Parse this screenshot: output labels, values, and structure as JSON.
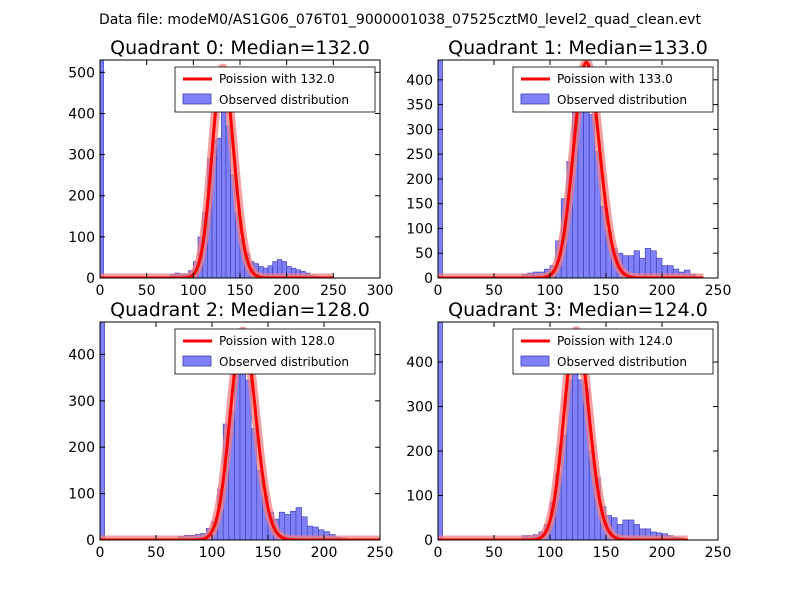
{
  "suptitle": "Data file: modeM0/AS1G06_076T01_9000001038_07525cztM0_level2_quad_clean.evt",
  "colors": {
    "bar_fill": "#8080f8",
    "bar_edge": "#3b3bb0",
    "poisson": "#ff0000",
    "poisson_halo": "#f08080"
  },
  "legend_labels": {
    "observed": "Observed distribution"
  },
  "chart_data": [
    {
      "type": "bar",
      "title": "Quadrant 0: Median=132.0",
      "poisson_label": "Poission with 132.0",
      "median": 132.0,
      "xlim": [
        0,
        300
      ],
      "ylim": [
        0,
        530
      ],
      "xticks": [
        "0",
        "50",
        "100",
        "150",
        "200",
        "250",
        "300"
      ],
      "yticks": [
        "0",
        "100",
        "200",
        "300",
        "400",
        "500"
      ],
      "bin_width": 5,
      "zero_bin_count": 530,
      "bins": [
        [
          75,
          8
        ],
        [
          80,
          12
        ],
        [
          85,
          10
        ],
        [
          90,
          10
        ],
        [
          95,
          18
        ],
        [
          100,
          40
        ],
        [
          105,
          100
        ],
        [
          110,
          160
        ],
        [
          115,
          290
        ],
        [
          120,
          335
        ],
        [
          125,
          340
        ],
        [
          130,
          420
        ],
        [
          135,
          370
        ],
        [
          140,
          250
        ],
        [
          145,
          160
        ],
        [
          150,
          95
        ],
        [
          155,
          60
        ],
        [
          160,
          40
        ],
        [
          165,
          35
        ],
        [
          170,
          28
        ],
        [
          175,
          24
        ],
        [
          180,
          30
        ],
        [
          185,
          40
        ],
        [
          190,
          45
        ],
        [
          195,
          40
        ],
        [
          200,
          28
        ],
        [
          205,
          24
        ],
        [
          210,
          20
        ],
        [
          215,
          16
        ],
        [
          220,
          12
        ],
        [
          225,
          6
        ],
        [
          230,
          4
        ]
      ],
      "poisson_range": [
        0,
        250
      ],
      "poisson_peak": 510
    },
    {
      "type": "bar",
      "title": "Quadrant 1: Median=133.0",
      "poisson_label": "Poission with 133.0",
      "median": 133.0,
      "xlim": [
        0,
        250
      ],
      "ylim": [
        0,
        440
      ],
      "xticks": [
        "0",
        "50",
        "100",
        "150",
        "200",
        "250"
      ],
      "yticks": [
        "0",
        "50",
        "100",
        "150",
        "200",
        "250",
        "300",
        "350",
        "400"
      ],
      "bin_width": 5,
      "zero_bin_count": 440,
      "bins": [
        [
          75,
          8
        ],
        [
          80,
          10
        ],
        [
          85,
          12
        ],
        [
          90,
          12
        ],
        [
          95,
          18
        ],
        [
          100,
          25
        ],
        [
          105,
          75
        ],
        [
          110,
          160
        ],
        [
          115,
          235
        ],
        [
          120,
          340
        ],
        [
          125,
          380
        ],
        [
          130,
          395
        ],
        [
          135,
          330
        ],
        [
          140,
          255
        ],
        [
          145,
          145
        ],
        [
          150,
          95
        ],
        [
          155,
          60
        ],
        [
          160,
          50
        ],
        [
          165,
          45
        ],
        [
          170,
          45
        ],
        [
          175,
          55
        ],
        [
          180,
          40
        ],
        [
          185,
          60
        ],
        [
          190,
          55
        ],
        [
          195,
          40
        ],
        [
          200,
          25
        ],
        [
          205,
          25
        ],
        [
          210,
          18
        ],
        [
          215,
          12
        ],
        [
          220,
          16
        ],
        [
          225,
          8
        ]
      ],
      "poisson_range": [
        0,
        237
      ],
      "poisson_peak": 435
    },
    {
      "type": "bar",
      "title": "Quadrant 2: Median=128.0",
      "poisson_label": "Poission with 128.0",
      "median": 128.0,
      "xlim": [
        0,
        250
      ],
      "ylim": [
        0,
        470
      ],
      "xticks": [
        "0",
        "50",
        "100",
        "150",
        "200",
        "250"
      ],
      "yticks": [
        "0",
        "100",
        "200",
        "300",
        "400"
      ],
      "bin_width": 5,
      "zero_bin_count": 470,
      "bins": [
        [
          70,
          8
        ],
        [
          75,
          10
        ],
        [
          80,
          10
        ],
        [
          85,
          12
        ],
        [
          90,
          14
        ],
        [
          95,
          25
        ],
        [
          100,
          40
        ],
        [
          105,
          110
        ],
        [
          110,
          250
        ],
        [
          115,
          280
        ],
        [
          120,
          380
        ],
        [
          125,
          385
        ],
        [
          130,
          345
        ],
        [
          135,
          240
        ],
        [
          140,
          150
        ],
        [
          145,
          95
        ],
        [
          150,
          60
        ],
        [
          155,
          45
        ],
        [
          160,
          60
        ],
        [
          165,
          55
        ],
        [
          170,
          62
        ],
        [
          175,
          70
        ],
        [
          180,
          50
        ],
        [
          185,
          30
        ],
        [
          190,
          28
        ],
        [
          195,
          22
        ],
        [
          200,
          18
        ],
        [
          205,
          12
        ],
        [
          210,
          6
        ],
        [
          215,
          4
        ]
      ],
      "poisson_range": [
        0,
        250
      ],
      "poisson_peak": 450
    },
    {
      "type": "bar",
      "title": "Quadrant 3: Median=124.0",
      "poisson_label": "Poission with 124.0",
      "median": 124.0,
      "xlim": [
        0,
        250
      ],
      "ylim": [
        0,
        490
      ],
      "xticks": [
        "0",
        "50",
        "100",
        "150",
        "200",
        "250"
      ],
      "yticks": [
        "0",
        "100",
        "200",
        "300",
        "400"
      ],
      "bin_width": 5,
      "zero_bin_count": 490,
      "bins": [
        [
          75,
          10
        ],
        [
          80,
          10
        ],
        [
          85,
          12
        ],
        [
          90,
          18
        ],
        [
          95,
          35
        ],
        [
          100,
          85
        ],
        [
          105,
          150
        ],
        [
          110,
          235
        ],
        [
          115,
          360
        ],
        [
          120,
          405
        ],
        [
          125,
          360
        ],
        [
          130,
          340
        ],
        [
          135,
          200
        ],
        [
          140,
          140
        ],
        [
          145,
          75
        ],
        [
          150,
          55
        ],
        [
          155,
          50
        ],
        [
          160,
          35
        ],
        [
          165,
          45
        ],
        [
          170,
          45
        ],
        [
          175,
          35
        ],
        [
          180,
          25
        ],
        [
          185,
          25
        ],
        [
          190,
          18
        ],
        [
          195,
          16
        ],
        [
          200,
          14
        ],
        [
          205,
          10
        ],
        [
          210,
          6
        ],
        [
          215,
          4
        ]
      ],
      "poisson_range": [
        0,
        223
      ],
      "poisson_peak": 470
    }
  ]
}
